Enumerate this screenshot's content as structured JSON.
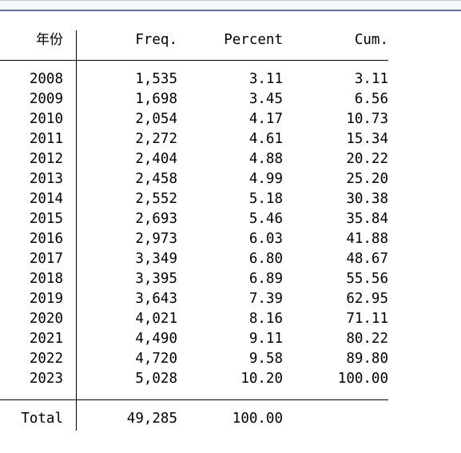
{
  "table": {
    "headers": [
      "年份",
      "Freq.",
      "Percent",
      "Cum."
    ],
    "rows": [
      [
        "2008",
        "1,535",
        "3.11",
        "3.11"
      ],
      [
        "2009",
        "1,698",
        "3.45",
        "6.56"
      ],
      [
        "2010",
        "2,054",
        "4.17",
        "10.73"
      ],
      [
        "2011",
        "2,272",
        "4.61",
        "15.34"
      ],
      [
        "2012",
        "2,404",
        "4.88",
        "20.22"
      ],
      [
        "2013",
        "2,458",
        "4.99",
        "25.20"
      ],
      [
        "2014",
        "2,552",
        "5.18",
        "30.38"
      ],
      [
        "2015",
        "2,693",
        "5.46",
        "35.84"
      ],
      [
        "2016",
        "2,973",
        "6.03",
        "41.88"
      ],
      [
        "2017",
        "3,349",
        "6.80",
        "48.67"
      ],
      [
        "2018",
        "3,395",
        "6.89",
        "55.56"
      ],
      [
        "2019",
        "3,643",
        "7.39",
        "62.95"
      ],
      [
        "2020",
        "4,021",
        "8.16",
        "71.11"
      ],
      [
        "2021",
        "4,490",
        "9.11",
        "80.22"
      ],
      [
        "2022",
        "4,720",
        "9.58",
        "89.80"
      ],
      [
        "2023",
        "5,028",
        "10.20",
        "100.00"
      ]
    ],
    "total": [
      "Total",
      "49,285",
      "100.00",
      ""
    ]
  }
}
